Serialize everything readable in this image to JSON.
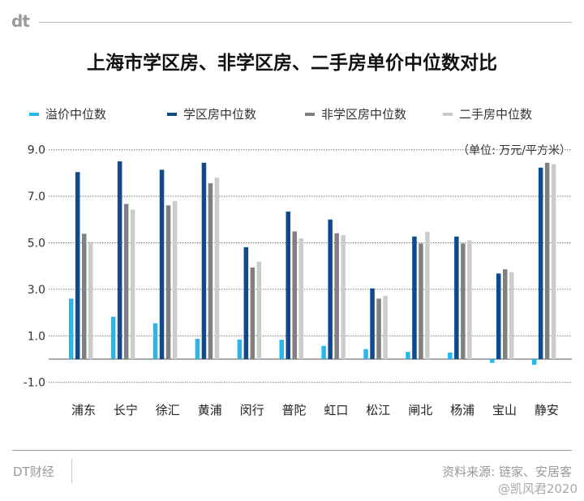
{
  "logo": "dt",
  "footer": {
    "brand": "DT财经",
    "source": "资料来源: 链家、安居客",
    "watermark": "@凯风君2020"
  },
  "colors": {
    "溢价中位数": "#29b6e8",
    "学区房中位数": "#0d4a8f",
    "非学区房中位数": "#808080",
    "二手房中位数": "#cccccc"
  },
  "chart_data": {
    "type": "bar",
    "title": "上海市学区房、非学区房、二手房单价中位数对比",
    "unit_label": "（单位: 万元/平方米）",
    "categories": [
      "浦东",
      "长宁",
      "徐汇",
      "黄浦",
      "闵行",
      "普陀",
      "虹口",
      "松江",
      "闸北",
      "杨浦",
      "宝山",
      "静安"
    ],
    "series": [
      {
        "name": "溢价中位数",
        "values": [
          2.6,
          1.82,
          1.54,
          0.87,
          0.84,
          0.83,
          0.57,
          0.43,
          0.31,
          0.28,
          -0.16,
          -0.24
        ]
      },
      {
        "name": "学区房中位数",
        "values": [
          8.04,
          8.5,
          8.14,
          8.44,
          4.81,
          6.34,
          6.0,
          3.04,
          5.27,
          5.27,
          3.68,
          8.23
        ]
      },
      {
        "name": "非学区房中位数",
        "values": [
          5.39,
          6.67,
          6.61,
          7.56,
          3.94,
          5.49,
          5.41,
          2.6,
          4.97,
          4.97,
          3.86,
          8.44
        ]
      },
      {
        "name": "二手房中位数",
        "values": [
          5.04,
          6.43,
          6.8,
          7.8,
          4.19,
          5.19,
          5.33,
          2.72,
          5.47,
          5.11,
          3.74,
          8.38
        ]
      }
    ],
    "yticks": [
      "9.0",
      "7.0",
      "5.0",
      "3.0",
      "1.0",
      "-1.0"
    ],
    "ylim": [
      -1,
      9
    ],
    "grid": true,
    "legend_position": "top"
  }
}
